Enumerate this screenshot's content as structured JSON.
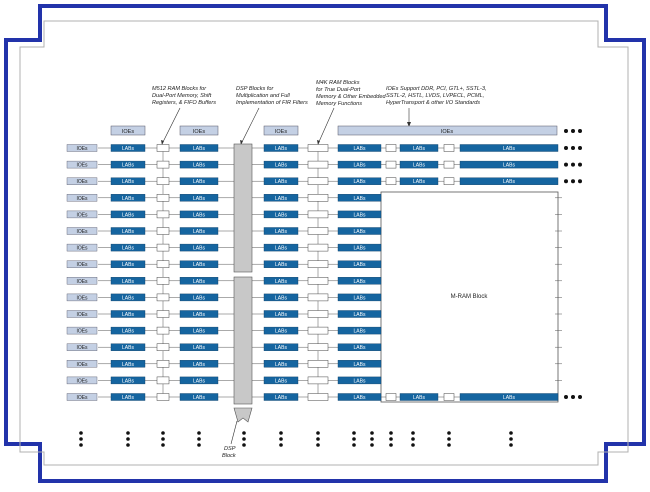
{
  "annotations": {
    "m512": [
      "M512 RAM Blocks for",
      "Dual-Port Memory, Shift",
      "Registers, & FIFO Buffers"
    ],
    "dsp": [
      "DSP Blocks for",
      "Multiplication and Full",
      "Implementation of FIR Filters"
    ],
    "m4k": [
      "M4K RAM Blocks",
      "for True Dual-Port",
      "Memory & Other Embedded",
      "Memory Functions"
    ],
    "ioe": [
      "IOEs Support DDR, PCI, GTL+, SSTL-3,",
      "SSTL-2, HSTL, LVDS, LVPECL, PCML,",
      "HyperTransport & other I/O Standards"
    ]
  },
  "labels": {
    "ioe": "IOEs",
    "lab": "LABs",
    "mram": "M-RAM Block",
    "dsp_block": [
      "DSP",
      "Block"
    ]
  },
  "layout_counts": {
    "row_count": 16
  },
  "colors": {
    "frame": "#2233aa",
    "lab_fill": "#1565a0",
    "ioe_fill": "#c4d0e4",
    "dsp_fill": "#c8c8c8",
    "line": "#555555"
  }
}
